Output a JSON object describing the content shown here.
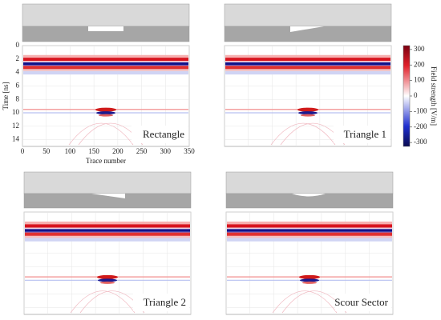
{
  "chart_data": {
    "type": "heatmap",
    "panels": [
      "Rectangle",
      "Triangle 1",
      "Triangle 2",
      "Scour Sector"
    ],
    "xlabel": "Trace number",
    "ylabel": "Time [ns]",
    "xlim": [
      0,
      350
    ],
    "xticks": [
      0,
      50,
      100,
      150,
      200,
      250,
      300,
      350
    ],
    "ylim": [
      0,
      15
    ],
    "yticks": [
      0,
      2,
      4,
      6,
      8,
      10,
      12,
      14
    ],
    "colorbar": {
      "label": "Field strength [V/m]",
      "lim": [
        -325,
        325
      ],
      "ticks": [
        -300,
        -200,
        -100,
        0,
        100,
        200,
        300
      ]
    }
  }
}
